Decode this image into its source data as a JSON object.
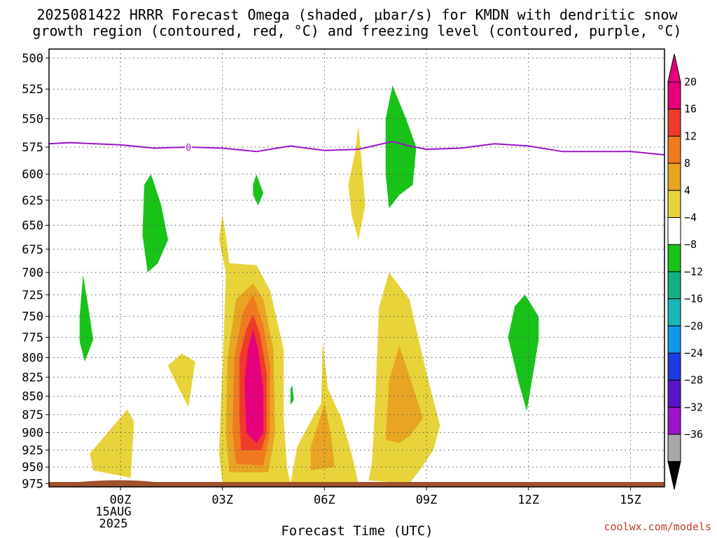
{
  "title_line1": "2025081422 HRRR Forecast Omega (shaded, μbar/s) for KMDN with dendritic snow",
  "title_line2": "growth region (contoured, red, °C) and freezing level (contoured, purple, °C)",
  "x_label": "Forecast Time (UTC)",
  "credit": "coolwx.com/models",
  "chart_data": {
    "type": "heatmap",
    "title": "2025081422 HRRR Forecast Omega (shaded, μbar/s) for KMDN with dendritic snow growth region (contoured, red, °C) and freezing level (contoured, purple, °C)",
    "xlabel": "Forecast Time (UTC)",
    "ylabel": "",
    "xlim_hours": [
      -2.1,
      16
    ],
    "ylim_hPa": [
      980,
      493
    ],
    "y_scale": "log",
    "y_ticks": [
      500,
      525,
      550,
      575,
      600,
      625,
      650,
      675,
      700,
      725,
      750,
      775,
      800,
      825,
      850,
      875,
      900,
      925,
      950,
      975
    ],
    "x_ticks": [
      {
        "hour": 0,
        "label": "00Z",
        "sub1": "15AUG",
        "sub2": "2025"
      },
      {
        "hour": 3,
        "label": "03Z"
      },
      {
        "hour": 6,
        "label": "06Z"
      },
      {
        "hour": 9,
        "label": "09Z"
      },
      {
        "hour": 12,
        "label": "12Z"
      },
      {
        "hour": 15,
        "label": "15Z"
      }
    ],
    "grid": true,
    "colorbar": {
      "placement": "right",
      "levels": [
        "20",
        "16",
        "12",
        "8",
        "4",
        "−4",
        "−8",
        "−12",
        "−16",
        "−20",
        "−24",
        "−28",
        "−32",
        "−36"
      ],
      "colors": [
        "#e6007e",
        "#ef3b2c",
        "#f07a20",
        "#e8a422",
        "#e8d43a",
        "#ffffff",
        "#19c219",
        "#13b082",
        "#19b8b8",
        "#1496e8",
        "#1c3ce0",
        "#5a14c8",
        "#9b14c8",
        "#a8a8a8"
      ],
      "top_arrow_color": "#e6007e",
      "bottom_arrow_color": "#000000"
    },
    "freezing_level": {
      "label": "0",
      "color": "#9b14c8",
      "points": [
        [
          -2.1,
          572
        ],
        [
          -1.5,
          571
        ],
        [
          0,
          573
        ],
        [
          1,
          576
        ],
        [
          2,
          575
        ],
        [
          3,
          576
        ],
        [
          4,
          579
        ],
        [
          5,
          574
        ],
        [
          6,
          578
        ],
        [
          7,
          577
        ],
        [
          8,
          570
        ],
        [
          8.5,
          574
        ],
        [
          9,
          577
        ],
        [
          10,
          576
        ],
        [
          11,
          572
        ],
        [
          12,
          574
        ],
        [
          13,
          579
        ],
        [
          14,
          579
        ],
        [
          15,
          579
        ],
        [
          16,
          582
        ]
      ]
    },
    "omega_regions": [
      {
        "level": 4,
        "points": [
          [
            0.4,
            967
          ],
          [
            -0.8,
            955
          ],
          [
            -0.9,
            930
          ],
          [
            -0.2,
            890
          ],
          [
            0.2,
            868
          ],
          [
            0.4,
            885
          ],
          [
            0.3,
            967
          ]
        ]
      },
      {
        "level": 4,
        "points": [
          [
            1.8,
            795
          ],
          [
            2.2,
            805
          ],
          [
            2.0,
            865
          ],
          [
            1.5,
            820
          ],
          [
            1.4,
            810
          ]
        ]
      },
      {
        "level": 4,
        "points": [
          [
            3.0,
            975
          ],
          [
            2.9,
            930
          ],
          [
            3.05,
            760
          ],
          [
            3.1,
            700
          ],
          [
            2.9,
            665
          ],
          [
            3.0,
            640
          ],
          [
            3.1,
            660
          ],
          [
            3.2,
            690
          ],
          [
            4.0,
            692
          ],
          [
            4.4,
            720
          ],
          [
            4.8,
            790
          ],
          [
            4.8,
            880
          ],
          [
            4.9,
            950
          ],
          [
            5.0,
            975
          ]
        ]
      },
      {
        "level": 4,
        "points": [
          [
            5.0,
            975
          ],
          [
            5.2,
            920
          ],
          [
            5.7,
            875
          ],
          [
            5.9,
            860
          ],
          [
            5.95,
            780
          ],
          [
            6.1,
            840
          ],
          [
            6.5,
            880
          ],
          [
            6.8,
            930
          ],
          [
            7.0,
            975
          ]
        ]
      },
      {
        "level": 4,
        "points": [
          [
            6.8,
            640
          ],
          [
            6.7,
            610
          ],
          [
            6.9,
            580
          ],
          [
            7.0,
            556
          ],
          [
            7.1,
            590
          ],
          [
            7.2,
            630
          ],
          [
            7.0,
            665
          ]
        ]
      },
      {
        "level": 4,
        "points": [
          [
            7.3,
            970
          ],
          [
            7.4,
            940
          ],
          [
            7.5,
            850
          ],
          [
            7.6,
            740
          ],
          [
            7.9,
            700
          ],
          [
            8.5,
            730
          ],
          [
            9.0,
            820
          ],
          [
            9.4,
            890
          ],
          [
            9.2,
            925
          ],
          [
            8.8,
            955
          ],
          [
            8.5,
            975
          ]
        ]
      },
      {
        "level": 8,
        "points": [
          [
            3.2,
            958
          ],
          [
            3.1,
            900
          ],
          [
            3.15,
            800
          ],
          [
            3.4,
            730
          ],
          [
            3.9,
            712
          ],
          [
            4.2,
            730
          ],
          [
            4.5,
            790
          ],
          [
            4.55,
            900
          ],
          [
            4.35,
            958
          ]
        ]
      },
      {
        "level": 8,
        "points": [
          [
            5.6,
            955
          ],
          [
            5.6,
            920
          ],
          [
            5.9,
            875
          ],
          [
            6.0,
            860
          ],
          [
            6.2,
            905
          ],
          [
            6.3,
            950
          ]
        ]
      },
      {
        "level": 8,
        "points": [
          [
            7.8,
            910
          ],
          [
            7.9,
            830
          ],
          [
            8.2,
            785
          ],
          [
            8.4,
            810
          ],
          [
            8.9,
            880
          ],
          [
            8.5,
            905
          ],
          [
            8.2,
            915
          ]
        ]
      },
      {
        "level": 12,
        "points": [
          [
            3.4,
            945
          ],
          [
            3.3,
            900
          ],
          [
            3.35,
            800
          ],
          [
            3.6,
            745
          ],
          [
            3.9,
            725
          ],
          [
            4.2,
            760
          ],
          [
            4.4,
            810
          ],
          [
            4.4,
            900
          ],
          [
            4.2,
            948
          ]
        ]
      },
      {
        "level": 16,
        "points": [
          [
            3.55,
            925
          ],
          [
            3.5,
            880
          ],
          [
            3.5,
            800
          ],
          [
            3.7,
            765
          ],
          [
            3.9,
            748
          ],
          [
            4.1,
            770
          ],
          [
            4.3,
            820
          ],
          [
            4.3,
            900
          ],
          [
            4.15,
            925
          ]
        ]
      },
      {
        "level": 20,
        "points": [
          [
            3.7,
            900
          ],
          [
            3.65,
            830
          ],
          [
            3.75,
            790
          ],
          [
            3.9,
            765
          ],
          [
            4.05,
            790
          ],
          [
            4.2,
            840
          ],
          [
            4.2,
            900
          ],
          [
            4.0,
            915
          ]
        ]
      },
      {
        "level": -4,
        "points": [
          [
            -1.2,
            750
          ],
          [
            -1.1,
            703
          ],
          [
            -0.9,
            750
          ],
          [
            -0.8,
            778
          ],
          [
            -1.05,
            805
          ],
          [
            -1.2,
            780
          ]
        ]
      },
      {
        "level": -4,
        "points": [
          [
            0.7,
            610
          ],
          [
            0.9,
            600
          ],
          [
            1.2,
            630
          ],
          [
            1.4,
            665
          ],
          [
            1.1,
            690
          ],
          [
            0.8,
            700
          ],
          [
            0.65,
            660
          ]
        ]
      },
      {
        "level": -4,
        "points": [
          [
            3.9,
            610
          ],
          [
            4.0,
            600
          ],
          [
            4.2,
            618
          ],
          [
            4.05,
            630
          ],
          [
            3.9,
            620
          ]
        ]
      },
      {
        "level": -4,
        "points": [
          [
            5.0,
            840
          ],
          [
            5.05,
            836
          ],
          [
            5.1,
            855
          ],
          [
            5.0,
            862
          ]
        ]
      },
      {
        "level": -4,
        "points": [
          [
            7.8,
            600
          ],
          [
            7.8,
            550
          ],
          [
            8.0,
            522
          ],
          [
            8.4,
            550
          ],
          [
            8.7,
            575
          ],
          [
            8.6,
            610
          ],
          [
            8.2,
            620
          ],
          [
            7.9,
            633
          ]
        ]
      },
      {
        "level": -4,
        "points": [
          [
            11.4,
            775
          ],
          [
            11.6,
            738
          ],
          [
            11.9,
            725
          ],
          [
            12.3,
            750
          ],
          [
            12.3,
            778
          ],
          [
            12.1,
            830
          ],
          [
            11.95,
            870
          ],
          [
            11.7,
            830
          ]
        ]
      }
    ]
  }
}
